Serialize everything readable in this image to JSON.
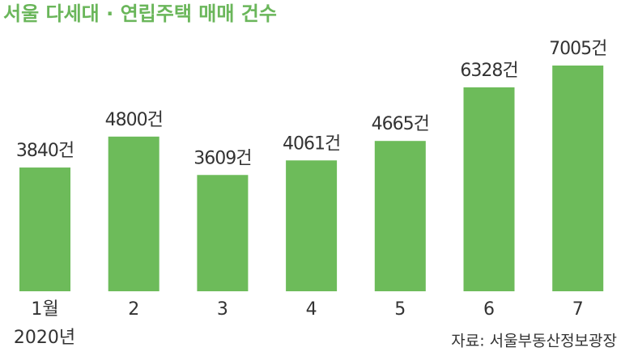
{
  "chart_data": {
    "type": "bar",
    "title": "서울 다세대 · 연립주택 매매 건수",
    "categories": [
      "1월",
      "2",
      "3",
      "4",
      "5",
      "6",
      "7"
    ],
    "category_note": "2020년",
    "values": [
      3840,
      4800,
      3609,
      4061,
      4665,
      6328,
      7005
    ],
    "value_labels": [
      "3840건",
      "4800건",
      "3609건",
      "4061건",
      "4665건",
      "6328건",
      "7005건"
    ],
    "color": "#6dbb5a",
    "source": "자료: 서울부동산정보광장"
  }
}
